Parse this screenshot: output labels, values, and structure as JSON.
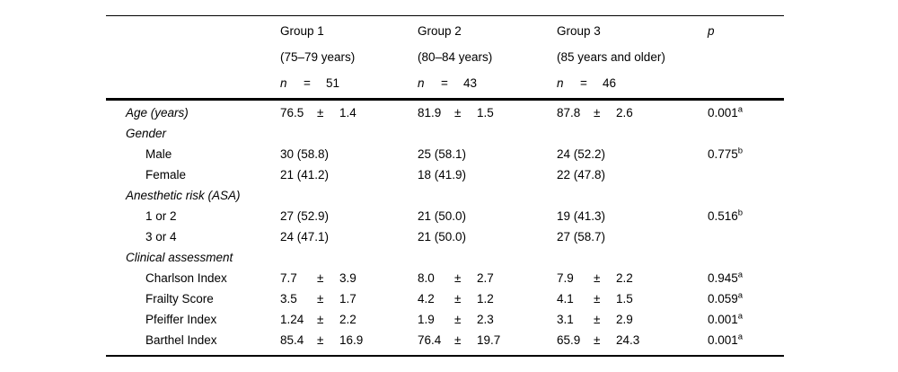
{
  "page": {
    "background_color": "#ffffff",
    "text_color": "#000000"
  },
  "table": {
    "p_column_title": "p",
    "group_columns": [
      {
        "title": "Group 1",
        "age_range": "(75–79 years)",
        "n_symbol": "n",
        "equals": "=",
        "n_value": "51"
      },
      {
        "title": "Group 2",
        "age_range": "(80–84 years)",
        "n_symbol": "n",
        "equals": "=",
        "n_value": "43"
      },
      {
        "title": "Group 3",
        "age_range": "(85 years and older)",
        "n_symbol": "n",
        "equals": "=",
        "n_value": "46"
      }
    ],
    "rows": [
      {
        "kind": "measure",
        "label": "Age (years)",
        "italic": true,
        "indent": 0,
        "values": [
          {
            "mean": "76.5",
            "pm": "±",
            "sd": "1.4"
          },
          {
            "mean": "81.9",
            "pm": "±",
            "sd": "1.5"
          },
          {
            "mean": "87.8",
            "pm": "±",
            "sd": "2.6"
          }
        ],
        "p": "0.001",
        "p_sup": "a"
      },
      {
        "kind": "section",
        "label": "Gender",
        "italic": true,
        "indent": 0
      },
      {
        "kind": "count",
        "label": "Male",
        "italic": false,
        "indent": 1,
        "values": [
          "30 (58.8)",
          "25 (58.1)",
          "24 (52.2)"
        ],
        "p": "0.775",
        "p_sup": "b"
      },
      {
        "kind": "count",
        "label": "Female",
        "italic": false,
        "indent": 1,
        "values": [
          "21 (41.2)",
          "18 (41.9)",
          "22 (47.8)"
        ]
      },
      {
        "kind": "section",
        "label": "Anesthetic risk (ASA)",
        "italic": true,
        "indent": 0
      },
      {
        "kind": "count",
        "label": "1 or 2",
        "italic": false,
        "indent": 1,
        "values": [
          "27 (52.9)",
          "21 (50.0)",
          "19 (41.3)"
        ],
        "p": "0.516",
        "p_sup": "b"
      },
      {
        "kind": "count",
        "label": "3 or 4",
        "italic": false,
        "indent": 1,
        "values": [
          "24 (47.1)",
          "21 (50.0)",
          "27 (58.7)"
        ]
      },
      {
        "kind": "section",
        "label": "Clinical assessment",
        "italic": true,
        "indent": 0
      },
      {
        "kind": "measure",
        "label": "Charlson Index",
        "italic": false,
        "indent": 1,
        "values": [
          {
            "mean": "7.7",
            "pm": "±",
            "sd": "3.9"
          },
          {
            "mean": "8.0",
            "pm": "±",
            "sd": "2.7"
          },
          {
            "mean": "7.9",
            "pm": "±",
            "sd": "2.2"
          }
        ],
        "p": "0.945",
        "p_sup": "a"
      },
      {
        "kind": "measure",
        "label": "Frailty Score",
        "italic": false,
        "indent": 1,
        "values": [
          {
            "mean": "3.5",
            "pm": "±",
            "sd": "1.7"
          },
          {
            "mean": "4.2",
            "pm": "±",
            "sd": "1.2"
          },
          {
            "mean": "4.1",
            "pm": "±",
            "sd": "1.5"
          }
        ],
        "p": "0.059",
        "p_sup": "a"
      },
      {
        "kind": "measure",
        "label": "Pfeiffer Index",
        "italic": false,
        "indent": 1,
        "values": [
          {
            "mean": "1.24",
            "pm": "±",
            "sd": "2.2"
          },
          {
            "mean": "1.9",
            "pm": "±",
            "sd": "2.3"
          },
          {
            "mean": "3.1",
            "pm": "±",
            "sd": "2.9"
          }
        ],
        "p": "0.001",
        "p_sup": "a"
      },
      {
        "kind": "measure",
        "label": "Barthel Index",
        "italic": false,
        "indent": 1,
        "values": [
          {
            "mean": "85.4",
            "pm": "±",
            "sd": "16.9"
          },
          {
            "mean": "76.4",
            "pm": "±",
            "sd": "19.7"
          },
          {
            "mean": "65.9",
            "pm": "±",
            "sd": "24.3"
          }
        ],
        "p": "0.001",
        "p_sup": "a"
      }
    ]
  }
}
